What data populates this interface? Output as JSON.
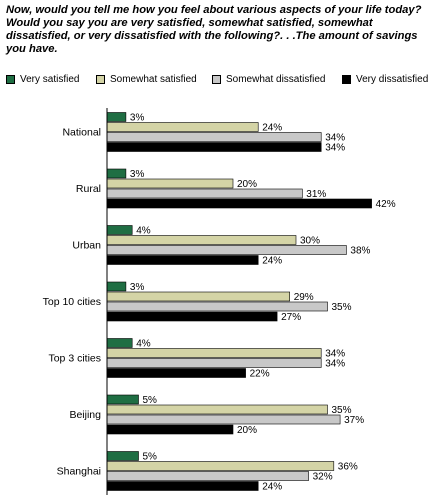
{
  "chart_data": {
    "type": "bar",
    "orientation": "horizontal",
    "title": "Now, would you tell me how you feel about various aspects of your life today? Would you say you are very satisfied, somewhat satisfied, somewhat dissatisfied, or very dissatisfied with the following?. . .The amount of savings you have.",
    "categories": [
      "National",
      "Rural",
      "Urban",
      "Top 10 cities",
      "Top 3 cities",
      "Beijing",
      "Shanghai"
    ],
    "series": [
      {
        "name": "Very satisfied",
        "color": "#1f6e43",
        "values": [
          3,
          3,
          4,
          3,
          4,
          5,
          5
        ]
      },
      {
        "name": "Somewhat satisfied",
        "color": "#d4d4a6",
        "values": [
          24,
          20,
          30,
          29,
          34,
          35,
          36
        ]
      },
      {
        "name": "Somewhat dissatisfied",
        "color": "#c8c8c8",
        "values": [
          34,
          31,
          38,
          35,
          34,
          37,
          32
        ]
      },
      {
        "name": "Very dissatisfied",
        "color": "#000000",
        "values": [
          34,
          42,
          24,
          27,
          22,
          20,
          24
        ]
      }
    ],
    "value_suffix": "%",
    "xlim": [
      0,
      50
    ],
    "grid": false,
    "legend_position": "top"
  }
}
